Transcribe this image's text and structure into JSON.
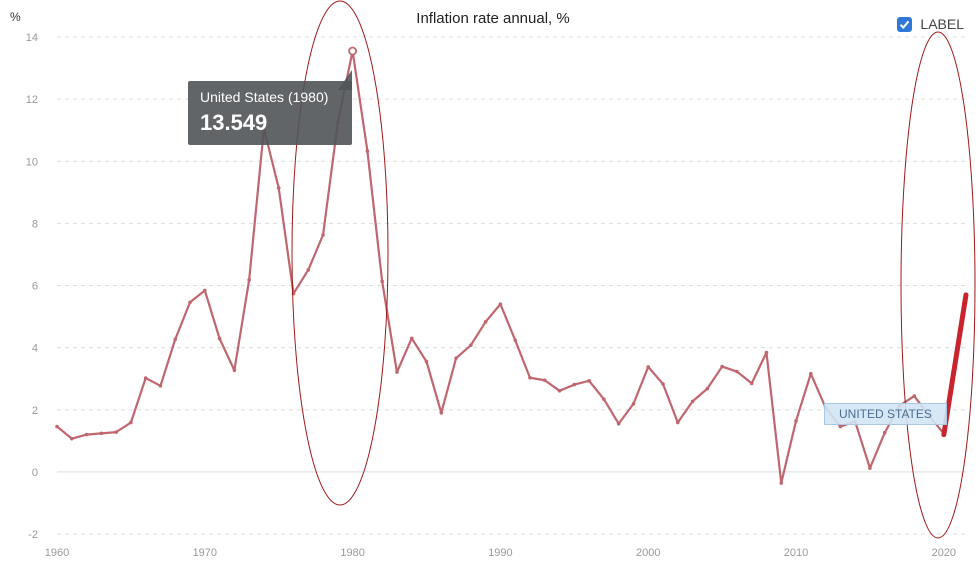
{
  "title": "Inflation rate annual, %",
  "unit_label": "%",
  "legend": {
    "label": "LABEL",
    "checked": true
  },
  "tooltip": {
    "label": "United States (1980)",
    "value": "13.549"
  },
  "series_tag": "UNITED STATES",
  "colors": {
    "line": "#c0666f",
    "highlight": "#c8242d",
    "ellipse": "#a01818",
    "grid": "#dddddd",
    "tooltip_bg": "#50545a"
  },
  "chart_data": {
    "type": "line",
    "title": "Inflation rate annual, %",
    "ylabel": "%",
    "xlim": [
      1960,
      2021.5
    ],
    "ylim": [
      -2,
      14
    ],
    "x_ticks": [
      1960,
      1970,
      1980,
      1990,
      2000,
      2010,
      2020
    ],
    "y_ticks": [
      -2,
      0,
      2,
      4,
      6,
      8,
      10,
      12,
      14
    ],
    "grid": true,
    "legend_position": "top-right",
    "series": [
      {
        "name": "United States",
        "x": [
          1960,
          1961,
          1962,
          1963,
          1964,
          1965,
          1966,
          1967,
          1968,
          1969,
          1970,
          1971,
          1972,
          1973,
          1974,
          1975,
          1976,
          1977,
          1978,
          1979,
          1980,
          1981,
          1982,
          1983,
          1984,
          1985,
          1986,
          1987,
          1988,
          1989,
          1990,
          1991,
          1992,
          1993,
          1994,
          1995,
          1996,
          1997,
          1998,
          1999,
          2000,
          2001,
          2002,
          2003,
          2004,
          2005,
          2006,
          2007,
          2008,
          2009,
          2010,
          2011,
          2012,
          2013,
          2014,
          2015,
          2016,
          2017,
          2018,
          2019,
          2020
        ],
        "values": [
          1.46,
          1.07,
          1.2,
          1.24,
          1.28,
          1.59,
          3.02,
          2.77,
          4.27,
          5.46,
          5.84,
          4.29,
          3.27,
          6.18,
          11.05,
          9.14,
          5.74,
          6.5,
          7.63,
          11.25,
          13.549,
          10.33,
          6.13,
          3.21,
          4.3,
          3.55,
          1.9,
          3.66,
          4.08,
          4.83,
          5.4,
          4.24,
          3.03,
          2.95,
          2.61,
          2.81,
          2.93,
          2.34,
          1.55,
          2.19,
          3.38,
          2.83,
          1.59,
          2.27,
          2.68,
          3.39,
          3.23,
          2.85,
          3.84,
          -0.36,
          1.64,
          3.16,
          2.07,
          1.46,
          1.62,
          0.12,
          1.26,
          2.13,
          2.44,
          1.81,
          1.23
        ]
      },
      {
        "name": "United States (recent)",
        "x": [
          2020,
          2021.5
        ],
        "values": [
          1.2,
          5.7
        ]
      }
    ],
    "annotations": [
      {
        "type": "ellipse",
        "x": 1979,
        "y": 6
      },
      {
        "type": "ellipse",
        "x": 2020.7,
        "y": 6
      }
    ],
    "highlight_point": {
      "x": 1980,
      "y": 13.549
    }
  }
}
